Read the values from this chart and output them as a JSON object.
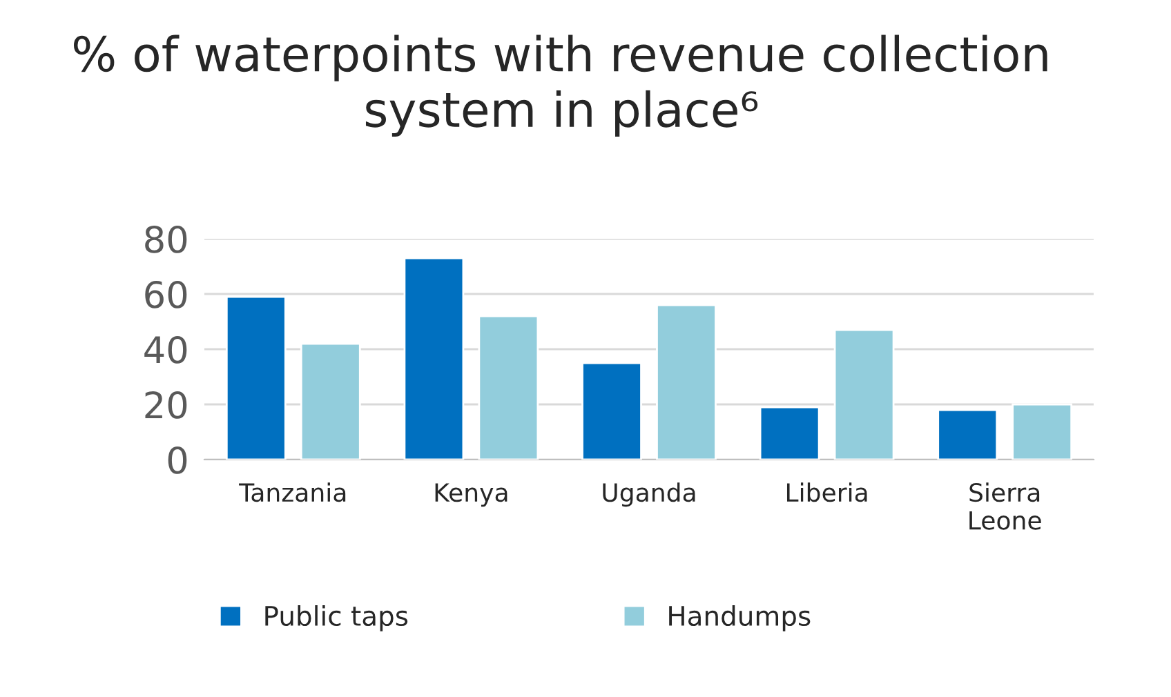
{
  "chart_data": {
    "type": "bar",
    "title": "% of waterpoints with revenue collection system in place⁶",
    "categories": [
      "Tanzania",
      "Kenya",
      "Uganda",
      "Liberia",
      "Sierra\nLeone"
    ],
    "series": [
      {
        "name": "Public taps",
        "color": "#0070c0",
        "values": [
          59,
          73,
          35,
          19,
          18
        ]
      },
      {
        "name": "Handumps",
        "color": "#92cddc",
        "values": [
          42,
          52,
          56,
          47,
          20
        ]
      }
    ],
    "ylim": [
      0,
      80
    ],
    "yticks": [
      0,
      20,
      40,
      60,
      80
    ],
    "grid": "y",
    "legend": "bottom"
  }
}
